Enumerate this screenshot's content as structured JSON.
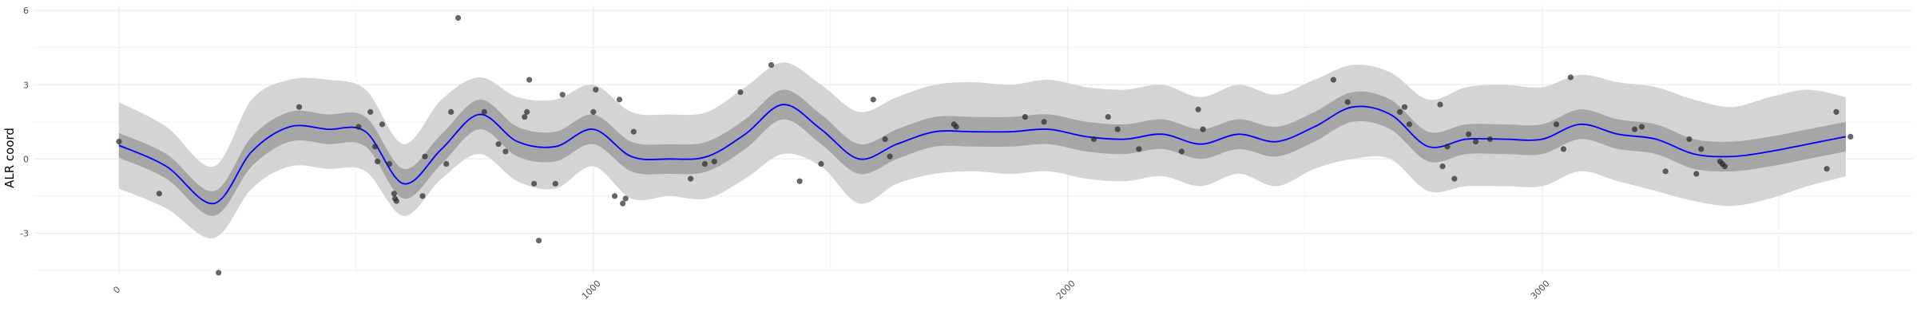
{
  "chart_data": {
    "type": "line",
    "title": "",
    "xlabel": "",
    "ylabel": "ALR coord",
    "xlim": [
      -180,
      3780
    ],
    "ylim": [
      -4.6,
      6.2
    ],
    "x_ticks": [
      0,
      1000,
      2000,
      3000
    ],
    "x_tick_labels": [
      "0",
      "1000",
      "2000",
      "3000"
    ],
    "y_ticks": [
      -3,
      0,
      3,
      6
    ],
    "y_tick_labels": [
      "-3",
      "0",
      "3",
      "6"
    ],
    "grid": true,
    "legend": "none",
    "colors": {
      "mean_line": "#0000ff",
      "inner_band": "#a6a6a6",
      "outer_band": "#d4d4d4",
      "points": "#262626",
      "grid": "#ebebeb"
    },
    "series": [
      {
        "type": "line",
        "x": [
          0,
          100,
          200,
          280,
          360,
          440,
          520,
          600,
          680,
          760,
          840,
          920,
          1000,
          1080,
          1160,
          1240,
          1320,
          1400,
          1480,
          1560,
          1640,
          1720,
          1800,
          1880,
          1960,
          2040,
          2120,
          2200,
          2280,
          2360,
          2440,
          2520,
          2600,
          2680,
          2760,
          2840,
          2920,
          3000,
          3080,
          3160,
          3240,
          3320,
          3400,
          3480,
          3560,
          3640
        ],
        "y": [
          0.55,
          -0.3,
          -1.8,
          0.3,
          1.3,
          1.2,
          1.1,
          -1.0,
          0.4,
          1.8,
          0.7,
          0.5,
          1.2,
          0.1,
          0.0,
          0.1,
          1.0,
          2.2,
          1.2,
          0.0,
          0.6,
          1.1,
          1.1,
          1.1,
          1.2,
          0.9,
          0.8,
          1.0,
          0.6,
          1.0,
          0.7,
          1.3,
          2.1,
          1.8,
          0.5,
          0.8,
          0.8,
          0.8,
          1.4,
          1.0,
          0.8,
          0.2,
          0.1,
          0.3,
          0.6,
          0.9
        ]
      },
      {
        "type": "band",
        "name": "",
        "x": [
          0,
          100,
          200,
          280,
          360,
          440,
          520,
          600,
          680,
          760,
          840,
          920,
          1000,
          1080,
          1160,
          1240,
          1320,
          1400,
          1480,
          1560,
          1640,
          1720,
          1800,
          1880,
          1960,
          2040,
          2120,
          2200,
          2280,
          2360,
          2440,
          2520,
          2600,
          2680,
          2760,
          2840,
          2920,
          3000,
          3080,
          3160,
          3240,
          3320,
          3400,
          3480,
          3560,
          3640
        ],
        "lower": [
          0.05,
          -0.8,
          -2.3,
          -0.3,
          0.7,
          0.6,
          0.5,
          -1.6,
          -0.2,
          1.2,
          0.1,
          -0.1,
          0.6,
          -0.5,
          -0.6,
          -0.5,
          0.4,
          1.6,
          0.6,
          -0.6,
          0.0,
          0.5,
          0.5,
          0.5,
          0.6,
          0.3,
          0.2,
          0.4,
          0.0,
          0.4,
          0.1,
          0.7,
          1.5,
          1.2,
          -0.1,
          0.2,
          0.2,
          0.2,
          0.8,
          0.4,
          0.2,
          -0.4,
          -0.5,
          -0.3,
          0.0,
          0.3
        ],
        "upper": [
          1.05,
          0.2,
          -1.3,
          0.9,
          1.9,
          1.8,
          1.7,
          -0.4,
          1.0,
          2.4,
          1.3,
          1.1,
          1.8,
          0.7,
          0.6,
          0.7,
          1.6,
          2.8,
          1.8,
          0.6,
          1.2,
          1.7,
          1.7,
          1.7,
          1.8,
          1.5,
          1.4,
          1.6,
          1.2,
          1.6,
          1.3,
          1.9,
          2.7,
          2.4,
          1.1,
          1.4,
          1.4,
          1.4,
          2.0,
          1.6,
          1.4,
          0.8,
          0.7,
          0.9,
          1.2,
          1.5
        ]
      },
      {
        "type": "band",
        "name": "",
        "x": [
          0,
          100,
          200,
          280,
          360,
          440,
          520,
          600,
          680,
          760,
          840,
          920,
          1000,
          1080,
          1160,
          1240,
          1320,
          1400,
          1480,
          1560,
          1640,
          1720,
          1800,
          1880,
          1960,
          2040,
          2120,
          2200,
          2280,
          2360,
          2440,
          2520,
          2600,
          2680,
          2760,
          2840,
          2920,
          3000,
          3080,
          3160,
          3240,
          3320,
          3400,
          3480,
          3560,
          3640
        ],
        "lower": [
          -1.2,
          -2.0,
          -3.2,
          -1.2,
          -0.3,
          -0.4,
          -0.5,
          -2.3,
          -0.8,
          0.2,
          -0.9,
          -1.2,
          -0.3,
          -1.6,
          -1.5,
          -1.6,
          -0.8,
          0.2,
          -0.3,
          -1.8,
          -1.0,
          -0.6,
          -0.5,
          -0.6,
          -0.5,
          -0.8,
          -0.9,
          -0.7,
          -1.1,
          -0.6,
          -1.1,
          -0.4,
          0.0,
          0.0,
          -1.3,
          -1.1,
          -1.1,
          -1.1,
          -0.5,
          -0.9,
          -1.3,
          -1.7,
          -1.9,
          -1.6,
          -1.1,
          -0.7
        ],
        "upper": [
          2.3,
          1.3,
          -0.3,
          2.4,
          3.2,
          3.2,
          2.8,
          0.6,
          2.4,
          3.3,
          2.5,
          2.4,
          3.0,
          1.9,
          1.8,
          1.9,
          2.9,
          3.9,
          3.0,
          1.9,
          2.5,
          3.0,
          3.1,
          3.0,
          3.2,
          2.9,
          2.8,
          3.0,
          2.5,
          3.0,
          2.6,
          3.2,
          3.8,
          3.5,
          2.4,
          2.9,
          3.0,
          2.9,
          3.4,
          3.1,
          2.9,
          2.4,
          2.1,
          2.5,
          2.8,
          2.5
        ]
      },
      {
        "type": "scatter",
        "points": [
          [
            0,
            0.7
          ],
          [
            85,
            -1.4
          ],
          [
            210,
            -4.6
          ],
          [
            380,
            2.1
          ],
          [
            505,
            1.3
          ],
          [
            530,
            1.9
          ],
          [
            540,
            0.5
          ],
          [
            545,
            -0.1
          ],
          [
            555,
            1.4
          ],
          [
            570,
            -0.2
          ],
          [
            580,
            -1.4
          ],
          [
            582,
            -1.6
          ],
          [
            585,
            -1.7
          ],
          [
            640,
            -1.5
          ],
          [
            645,
            0.1
          ],
          [
            690,
            -0.2
          ],
          [
            700,
            1.9
          ],
          [
            715,
            5.7
          ],
          [
            770,
            1.9
          ],
          [
            800,
            0.6
          ],
          [
            815,
            0.3
          ],
          [
            855,
            1.7
          ],
          [
            860,
            1.9
          ],
          [
            865,
            3.2
          ],
          [
            875,
            -1.0
          ],
          [
            885,
            -3.3
          ],
          [
            920,
            -1.0
          ],
          [
            935,
            2.6
          ],
          [
            1000,
            1.9
          ],
          [
            1005,
            2.8
          ],
          [
            1045,
            -1.5
          ],
          [
            1055,
            2.4
          ],
          [
            1062,
            -1.8
          ],
          [
            1068,
            -1.6
          ],
          [
            1085,
            1.1
          ],
          [
            1205,
            -0.8
          ],
          [
            1235,
            -0.2
          ],
          [
            1255,
            -0.1
          ],
          [
            1310,
            2.7
          ],
          [
            1375,
            3.8
          ],
          [
            1435,
            -0.9
          ],
          [
            1480,
            -0.2
          ],
          [
            1590,
            2.4
          ],
          [
            1615,
            0.8
          ],
          [
            1625,
            0.1
          ],
          [
            1760,
            1.4
          ],
          [
            1765,
            1.3
          ],
          [
            1910,
            1.7
          ],
          [
            1950,
            1.5
          ],
          [
            2055,
            0.8
          ],
          [
            2085,
            1.7
          ],
          [
            2105,
            1.2
          ],
          [
            2150,
            0.4
          ],
          [
            2240,
            0.3
          ],
          [
            2275,
            2.0
          ],
          [
            2285,
            1.2
          ],
          [
            2560,
            3.2
          ],
          [
            2590,
            2.3
          ],
          [
            2700,
            1.9
          ],
          [
            2710,
            2.1
          ],
          [
            2720,
            1.4
          ],
          [
            2785,
            2.2
          ],
          [
            2790,
            -0.3
          ],
          [
            2800,
            0.5
          ],
          [
            2815,
            -0.8
          ],
          [
            2845,
            1.0
          ],
          [
            2860,
            0.7
          ],
          [
            2890,
            0.8
          ],
          [
            3030,
            1.4
          ],
          [
            3045,
            0.4
          ],
          [
            3060,
            3.3
          ],
          [
            3195,
            1.2
          ],
          [
            3210,
            1.3
          ],
          [
            3260,
            -0.5
          ],
          [
            3310,
            0.8
          ],
          [
            3325,
            -0.6
          ],
          [
            3335,
            0.4
          ],
          [
            3375,
            -0.1
          ],
          [
            3380,
            -0.2
          ],
          [
            3385,
            -0.3
          ],
          [
            3600,
            -0.4
          ],
          [
            3620,
            1.9
          ],
          [
            3650,
            0.9
          ]
        ]
      }
    ]
  }
}
